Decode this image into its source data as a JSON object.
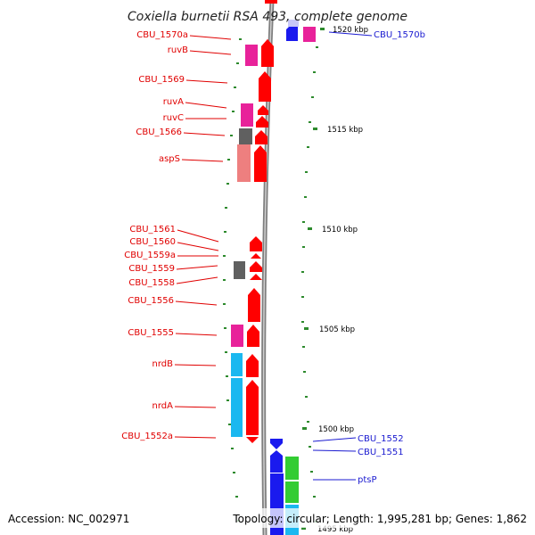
{
  "title": "Coxiella burnetii RSA 493, complete genome",
  "footer": {
    "accession": "Accession: NC_002971",
    "summary": "Topology: circular; Length: 1,995,281 bp; Genes: 1,862"
  },
  "colors": {
    "red": "#ff0000",
    "blue": "#1a1aee",
    "magenta": "#e8229a",
    "gray": "#606060",
    "salmon": "#ee7f7f",
    "cyan": "#1ab8f0",
    "green": "#33cc33",
    "pale_blue": "#c8c8f8"
  },
  "ticks": [
    {
      "label": "1520 kbp"
    },
    {
      "label": "1515 kbp"
    },
    {
      "label": "1510 kbp"
    },
    {
      "label": "1505 kbp"
    },
    {
      "label": "1500 kbp"
    },
    {
      "label": "1495 kbp"
    }
  ],
  "left_labels": [
    {
      "text": "CBU_1570a"
    },
    {
      "text": "ruvB"
    },
    {
      "text": "CBU_1569"
    },
    {
      "text": "ruvA"
    },
    {
      "text": "ruvC"
    },
    {
      "text": "CBU_1566"
    },
    {
      "text": "aspS"
    },
    {
      "text": "CBU_1561"
    },
    {
      "text": "CBU_1560"
    },
    {
      "text": "CBU_1559a"
    },
    {
      "text": "CBU_1559"
    },
    {
      "text": "CBU_1558"
    },
    {
      "text": "CBU_1556"
    },
    {
      "text": "CBU_1555"
    },
    {
      "text": "nrdB"
    },
    {
      "text": "nrdA"
    },
    {
      "text": "CBU_1552a"
    }
  ],
  "right_labels": [
    {
      "text": "CBU_1570b"
    },
    {
      "text": "CBU_1552"
    },
    {
      "text": "CBU_1551"
    },
    {
      "text": "ptsP"
    }
  ]
}
